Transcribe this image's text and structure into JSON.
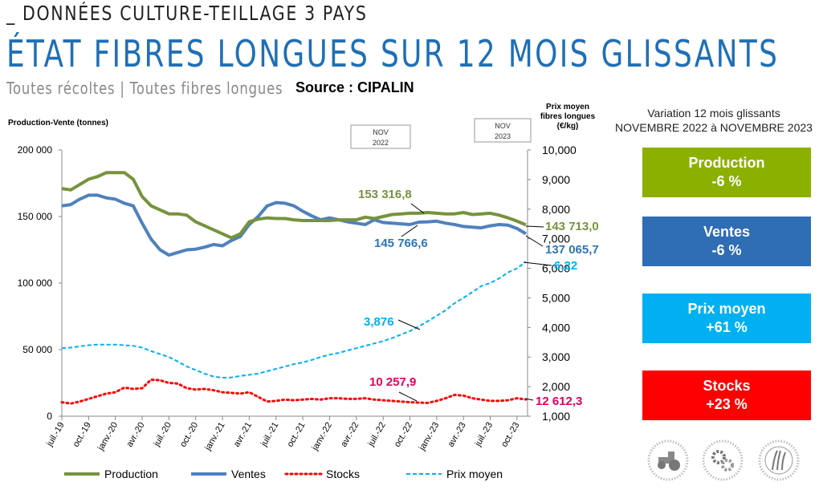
{
  "header": {
    "line1": "_ DONNÉES CULTURE-TEILLAGE 3 PAYS",
    "title": "ÉTAT FIBRES LONGUES SUR 12 MOIS GLISSANTS",
    "subtitle": "Toutes récoltes | Toutes fibres longues",
    "source": "Source : CIPALIN"
  },
  "variation": {
    "title_line1": "Variation 12 mois glissants",
    "title_line2": "NOVEMBRE 2022 à NOVEMBRE 2023",
    "boxes": [
      {
        "label": "Production",
        "value": "-6 %",
        "color": "#8cb000"
      },
      {
        "label": "Ventes",
        "value": "-6 %",
        "color": "#2f6db5"
      },
      {
        "label": "Prix moyen",
        "value": "+61 %",
        "color": "#00b0f0"
      },
      {
        "label": "Stocks",
        "value": "+23 %",
        "color": "#ff0000"
      }
    ]
  },
  "chart_data": {
    "type": "line",
    "ylabel_left": "Production-Vente (tonnes)",
    "ylabel_right": "Prix moyen fibres longues (€/kg)",
    "ylim_left": [
      0,
      200000
    ],
    "ylim_right": [
      1000,
      10000
    ],
    "yticks_left": [
      "0",
      "50 000",
      "100 000",
      "150 000",
      "200 000"
    ],
    "yticks_right": [
      "1,000",
      "2,000",
      "3,000",
      "4,000",
      "5,000",
      "6,000",
      "7,000",
      "8,000",
      "9,000",
      "10,000"
    ],
    "xticks": [
      "juil.-19",
      "oct.-19",
      "janv.-20",
      "avr.-20",
      "juil.-20",
      "oct.-20",
      "janv.-21",
      "avr.-21",
      "juil.-21",
      "oct.-21",
      "janv.-22",
      "avr.-22",
      "juil.-22",
      "oct.-22",
      "janv.-23",
      "avr.-23",
      "juil.-23",
      "oct.-23"
    ],
    "markers": [
      {
        "label1": "NOV",
        "label2": "2022"
      },
      {
        "label1": "NOV",
        "label2": "2023"
      }
    ],
    "series": [
      {
        "name": "Production",
        "axis": "left",
        "color": "#76933c",
        "dash": "",
        "values": [
          171000,
          170000,
          174000,
          178000,
          180000,
          183000,
          183000,
          183000,
          178000,
          165000,
          158000,
          155000,
          152000,
          152000,
          151000,
          146000,
          143000,
          140000,
          137000,
          134000,
          137000,
          146000,
          148000,
          149000,
          148500,
          148500,
          147500,
          147000,
          147000,
          147000,
          147000,
          147500,
          147500,
          147500,
          149500,
          148500,
          150000,
          151500,
          152000,
          152500,
          152500,
          153000,
          152500,
          152000,
          152000,
          153000,
          151500,
          152000,
          152500,
          151000,
          149000,
          146500,
          143713
        ]
      },
      {
        "name": "Ventes",
        "axis": "left",
        "color": "#4f81bd",
        "dash": "",
        "values": [
          158000,
          159000,
          163000,
          166000,
          166000,
          164000,
          163000,
          160000,
          158000,
          145000,
          133000,
          125000,
          121000,
          123000,
          125000,
          125500,
          127000,
          129000,
          128000,
          132000,
          135000,
          144000,
          150000,
          158000,
          160500,
          160000,
          158000,
          154000,
          150500,
          147500,
          149000,
          147500,
          146000,
          145000,
          144000,
          147500,
          145500,
          145000,
          144500,
          144000,
          145766,
          146000,
          146500,
          145000,
          144000,
          142500,
          142000,
          141500,
          143000,
          144000,
          143500,
          141000,
          137066
        ]
      },
      {
        "name": "Stocks",
        "axis": "left",
        "color": "#ff0000",
        "dash": "2 4",
        "values": [
          10500,
          9500,
          11000,
          13000,
          15000,
          17000,
          18000,
          21500,
          20500,
          21000,
          27500,
          27000,
          25000,
          24500,
          21000,
          20000,
          20500,
          19500,
          18000,
          17500,
          17000,
          18000,
          14500,
          11000,
          11500,
          12500,
          12000,
          12500,
          13000,
          12500,
          13500,
          13500,
          13000,
          13000,
          13500,
          12500,
          12000,
          11500,
          11000,
          10500,
          10258,
          10000,
          11500,
          13500,
          16000,
          15500,
          13500,
          12500,
          11500,
          11500,
          12000,
          13500,
          12612
        ]
      },
      {
        "name": "Prix moyen",
        "axis": "right",
        "color": "#00b0f0",
        "dash": "5 3",
        "values": [
          3300,
          3320,
          3360,
          3400,
          3420,
          3420,
          3420,
          3400,
          3380,
          3320,
          3200,
          3100,
          3000,
          2850,
          2680,
          2560,
          2440,
          2340,
          2300,
          2310,
          2360,
          2400,
          2440,
          2520,
          2600,
          2680,
          2760,
          2820,
          2900,
          3000,
          3080,
          3140,
          3220,
          3300,
          3380,
          3460,
          3540,
          3640,
          3760,
          3876,
          4040,
          4210,
          4390,
          4580,
          4820,
          5000,
          5200,
          5400,
          5500,
          5660,
          5860,
          6000,
          6220
        ]
      }
    ],
    "annotations": [
      {
        "text": "153 316,8",
        "color": "#76933c",
        "series": "Production"
      },
      {
        "text": "145 766,6",
        "color": "#2e75b6",
        "series": "Ventes"
      },
      {
        "text": "143 713,0",
        "color": "#76933c",
        "series": "Production"
      },
      {
        "text": "137 065,7",
        "color": "#2e75b6",
        "series": "Ventes"
      },
      {
        "text": "3,876",
        "color": "#00b0f0",
        "series": "Prix moyen"
      },
      {
        "text": "6,22",
        "color": "#00b0f0",
        "series": "Prix moyen"
      },
      {
        "text": "10 257,9",
        "color": "#e0005a",
        "series": "Stocks"
      },
      {
        "text": "12 612,3",
        "color": "#e0005a",
        "series": "Stocks"
      }
    ],
    "legend": [
      {
        "name": "Production",
        "color": "#76933c",
        "style": "solid"
      },
      {
        "name": "Ventes",
        "color": "#4f81bd",
        "style": "solid"
      },
      {
        "name": "Stocks",
        "color": "#ff0000",
        "style": "dotted"
      },
      {
        "name": "Prix moyen",
        "color": "#00b0f0",
        "style": "dashed"
      }
    ],
    "legend_position": "bottom"
  },
  "logos": [
    "tractor-logo",
    "gears-logo",
    "flax-logo"
  ]
}
